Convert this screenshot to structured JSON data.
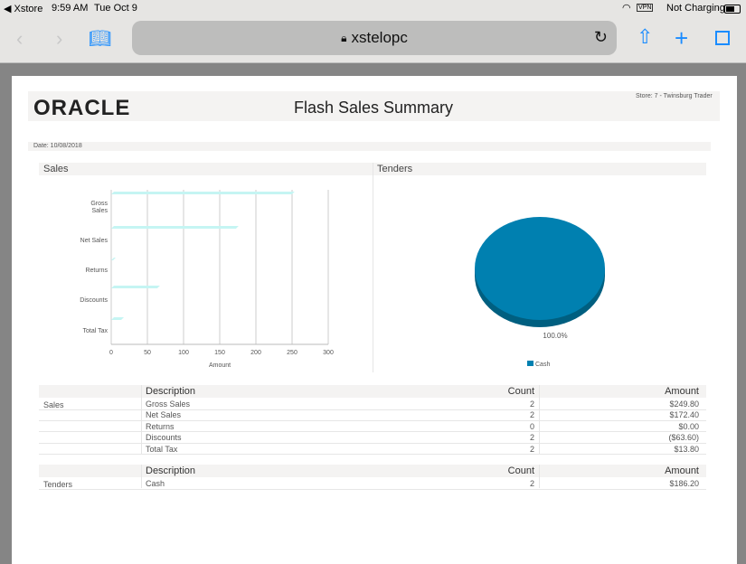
{
  "status": {
    "app_back": "◀ Xstore",
    "time": "9:59 AM",
    "date": "Tue Oct 9",
    "vpn": "VPN",
    "battery_text": "Not Charging"
  },
  "browser": {
    "url": "xstelopc",
    "icons": [
      "back-icon",
      "forward-icon",
      "bookmarks-icon",
      "lock-icon",
      "reload-icon",
      "share-icon",
      "new-tab-icon",
      "tabs-icon"
    ]
  },
  "report": {
    "logo": "ORACLE",
    "title": "Flash Sales Summary",
    "store": "Store: 7 - Twinsburg Trader",
    "date": "Date: 10/08/2018",
    "sales_header": "Sales",
    "tenders_header": "Tenders"
  },
  "chart_data": [
    {
      "type": "bar",
      "orientation": "horizontal",
      "categories": [
        "Gross Sales",
        "Net Sales",
        "Returns",
        "Discounts",
        "Total Tax"
      ],
      "values": [
        249.8,
        172.4,
        0,
        63.6,
        13.8
      ],
      "xlabel": "Amount",
      "xlim": [
        0,
        300
      ],
      "ticks": [
        "0",
        "50",
        "100",
        "150",
        "200",
        "250",
        "300"
      ],
      "color": "#3ad8d4"
    },
    {
      "type": "pie",
      "labels": [
        "Cash"
      ],
      "values": [
        100.0
      ],
      "data_label": "100.0%",
      "legend": "Cash",
      "legend_position": "bottom",
      "color": "#0080b0"
    }
  ],
  "sales_table": {
    "section": "Sales",
    "headers": [
      "Description",
      "Count",
      "Amount"
    ],
    "rows": [
      {
        "desc": "Gross Sales",
        "count": "2",
        "amount": "$249.80"
      },
      {
        "desc": "Net Sales",
        "count": "2",
        "amount": "$172.40"
      },
      {
        "desc": "Returns",
        "count": "0",
        "amount": "$0.00"
      },
      {
        "desc": "Discounts",
        "count": "2",
        "amount": "($63.60)"
      },
      {
        "desc": "Total Tax",
        "count": "2",
        "amount": "$13.80"
      }
    ]
  },
  "tenders_table": {
    "section": "Tenders",
    "headers": [
      "Description",
      "Count",
      "Amount"
    ],
    "rows": [
      {
        "desc": "Cash",
        "count": "2",
        "amount": "$186.20"
      }
    ]
  }
}
